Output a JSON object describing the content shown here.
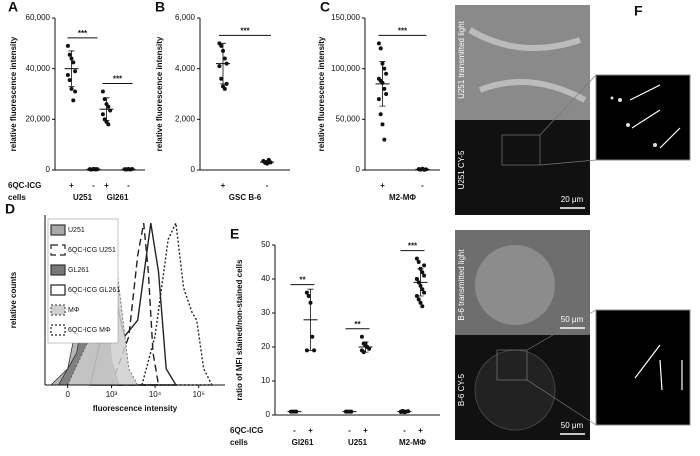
{
  "chart_data": [
    {
      "type": "strip",
      "panel": "A",
      "ylabel": "relative fluorescence intensity",
      "ylim": [
        0,
        60000
      ],
      "yticks": [
        0,
        {
          "value": 20000,
          "label": "20,000"
        },
        {
          "value": 40000,
          "label": "40,000"
        },
        {
          "value": 60000,
          "label": "60,000"
        }
      ],
      "row_labels": [
        "6QC-ICG",
        "cells"
      ],
      "cells": [
        {
          "name": "U251",
          "sig": "***",
          "groups": [
            {
              "sign": "+",
              "points": [
                49000,
                45500,
                44000,
                42500,
                39000,
                37500,
                35500,
                32000,
                27500,
                31000
              ],
              "mean": 40000,
              "sd": 7000
            },
            {
              "sign": "-",
              "points": [
                300,
                200,
                400,
                250,
                350,
                300,
                200,
                400,
                300,
                250
              ],
              "mean": 300,
              "sd": 70
            }
          ]
        },
        {
          "name": "Gl261",
          "sig": "***",
          "groups": [
            {
              "sign": "+",
              "points": [
                31000,
                28000,
                26000,
                25000,
                23500,
                22000,
                20000,
                19000,
                18000
              ],
              "mean": 24000,
              "sd": 4500
            },
            {
              "sign": "-",
              "points": [
                300,
                250,
                350,
                200,
                400,
                300,
                250,
                350
              ],
              "mean": 300,
              "sd": 70
            }
          ]
        }
      ]
    },
    {
      "type": "strip",
      "panel": "B",
      "ylabel": "relative fluorescence intensity",
      "ylim": [
        0,
        6000
      ],
      "yticks": [
        0,
        {
          "value": 2000,
          "label": "2,000"
        },
        {
          "value": 4000,
          "label": "4,000"
        },
        {
          "value": 6000,
          "label": "6,000"
        }
      ],
      "cells": [
        {
          "name": "GSC B-6",
          "sig": "***",
          "groups": [
            {
              "sign": "+",
              "points": [
                5000,
                4900,
                4700,
                4400,
                4200,
                4100,
                3600,
                3300,
                3200,
                3400
              ],
              "mean": 4200,
              "sd": 800
            },
            {
              "sign": "-",
              "points": [
                350,
                300,
                250,
                400,
                300,
                350,
                280,
                320,
                300
              ],
              "mean": 310,
              "sd": 50
            }
          ]
        }
      ]
    },
    {
      "type": "strip",
      "panel": "C",
      "ylabel": "relative fluorescence intensity",
      "ylim": [
        0,
        150000
      ],
      "yticks": [
        0,
        {
          "value": 50000,
          "label": "50,000"
        },
        {
          "value": 100000,
          "label": "100,000"
        },
        {
          "value": 150000,
          "label": "150,000"
        }
      ],
      "cells": [
        {
          "name": "M2-MΦ",
          "sig": "***",
          "groups": [
            {
              "sign": "+",
              "points": [
                125000,
                120000,
                105000,
                100000,
                95000,
                90000,
                88000,
                86000,
                80000,
                75000,
                70000,
                55000,
                45000,
                30000
              ],
              "mean": 85000,
              "sd": 22000
            },
            {
              "sign": "-",
              "points": [
                800,
                500,
                1200,
                300,
                600,
                900,
                400
              ],
              "mean": 650,
              "sd": 300
            }
          ]
        }
      ]
    },
    {
      "type": "density",
      "panel": "D",
      "ylabel": "relative counts",
      "xlabel": "fluorescence intensity",
      "xscale": "biexponential",
      "xlim": [
        -300,
        400000
      ],
      "ylim": [
        0,
        105
      ],
      "legend": "upper-left",
      "xticks": [
        0,
        {
          "value": 1000,
          "label": "10³"
        },
        {
          "value": 10000,
          "label": "10⁴"
        },
        {
          "value": 100000,
          "label": "10⁵"
        }
      ],
      "series": [
        {
          "name": "U251",
          "color": "#333333",
          "fill": "#a8a8a8",
          "dash": "none",
          "x": [
            -200,
            0,
            150,
            300,
            450,
            700,
            1000,
            1500
          ],
          "values": [
            0,
            10,
            50,
            100,
            80,
            30,
            5,
            0
          ]
        },
        {
          "name": "6QC-ICG U251",
          "color": "#222222",
          "fill": "none",
          "dash": "7 4",
          "x": [
            1000,
            2500,
            4000,
            5500,
            7000,
            9000,
            12000
          ],
          "values": [
            0,
            30,
            80,
            100,
            70,
            20,
            0
          ]
        },
        {
          "name": "GL261",
          "color": "#333333",
          "fill": "#777777",
          "dash": "none",
          "x": [
            -100,
            100,
            300,
            500,
            700,
            1000,
            1500
          ],
          "values": [
            0,
            20,
            70,
            95,
            60,
            15,
            0
          ]
        },
        {
          "name": "6QC-ICG GL261",
          "color": "#222222",
          "fill": "none",
          "dash": "none",
          "x": [
            300,
            700,
            1200,
            2000,
            4000,
            8000,
            12000,
            18000,
            30000
          ],
          "values": [
            0,
            40,
            55,
            30,
            40,
            100,
            70,
            10,
            0
          ]
        },
        {
          "name": "MΦ",
          "color": "#555555",
          "fill": "#cfcfcf",
          "dash": "2 2",
          "x": [
            0,
            300,
            700,
            1000,
            1500,
            2500,
            4000
          ],
          "values": [
            0,
            30,
            80,
            95,
            60,
            10,
            0
          ]
        },
        {
          "name": "6QC-ICG MΦ",
          "color": "#222222",
          "fill": "none",
          "dash": "2 2",
          "x": [
            5000,
            10000,
            20000,
            30000,
            45000,
            70000,
            90000,
            130000,
            200000
          ],
          "values": [
            0,
            30,
            90,
            100,
            60,
            45,
            40,
            10,
            0
          ]
        }
      ]
    },
    {
      "type": "strip",
      "panel": "E",
      "ylabel": "ratio of MFI stained/non-stained cells",
      "ylim": [
        0,
        50
      ],
      "yticks": [
        0,
        10,
        20,
        30,
        40,
        50
      ],
      "row_labels": [
        "6QC-ICG",
        "cells"
      ],
      "cells": [
        {
          "name": "Gl261",
          "sig": "**",
          "groups": [
            {
              "sign": "-",
              "points": [
                1,
                1,
                1,
                1
              ],
              "mean": 1,
              "sd": 0
            },
            {
              "sign": "+",
              "points": [
                36,
                35,
                33,
                23,
                19,
                19
              ],
              "mean": 28,
              "sd": 9
            }
          ]
        },
        {
          "name": "U251",
          "sig": "**",
          "groups": [
            {
              "sign": "-",
              "points": [
                1,
                1,
                1,
                1
              ],
              "mean": 1,
              "sd": 0
            },
            {
              "sign": "+",
              "points": [
                23,
                21,
                20.5,
                20,
                19.5,
                19,
                18.5,
                21
              ],
              "mean": 20,
              "sd": 1.5
            }
          ]
        },
        {
          "name": "M2-MΦ",
          "sig": "***",
          "groups": [
            {
              "sign": "-",
              "points": [
                1,
                1.2,
                0.8,
                1,
                1.1,
                0.9,
                1,
                1
              ],
              "mean": 1,
              "sd": 0.2
            },
            {
              "sign": "+",
              "points": [
                46,
                45,
                43,
                42,
                41,
                40,
                39,
                38,
                37,
                36,
                35,
                34,
                33,
                32,
                44,
                40
              ],
              "mean": 39,
              "sd": 4
            }
          ]
        }
      ]
    }
  ],
  "panel_f": {
    "letter": "F",
    "images": [
      {
        "label": "U251 transmitted light"
      },
      {
        "label": "U251 CY-5",
        "scale": "20 μm"
      },
      {
        "label": "B-6 transmitted light",
        "scale": "50 μm"
      },
      {
        "label": "B-6 CY-5",
        "scale": "50 μm"
      }
    ]
  }
}
